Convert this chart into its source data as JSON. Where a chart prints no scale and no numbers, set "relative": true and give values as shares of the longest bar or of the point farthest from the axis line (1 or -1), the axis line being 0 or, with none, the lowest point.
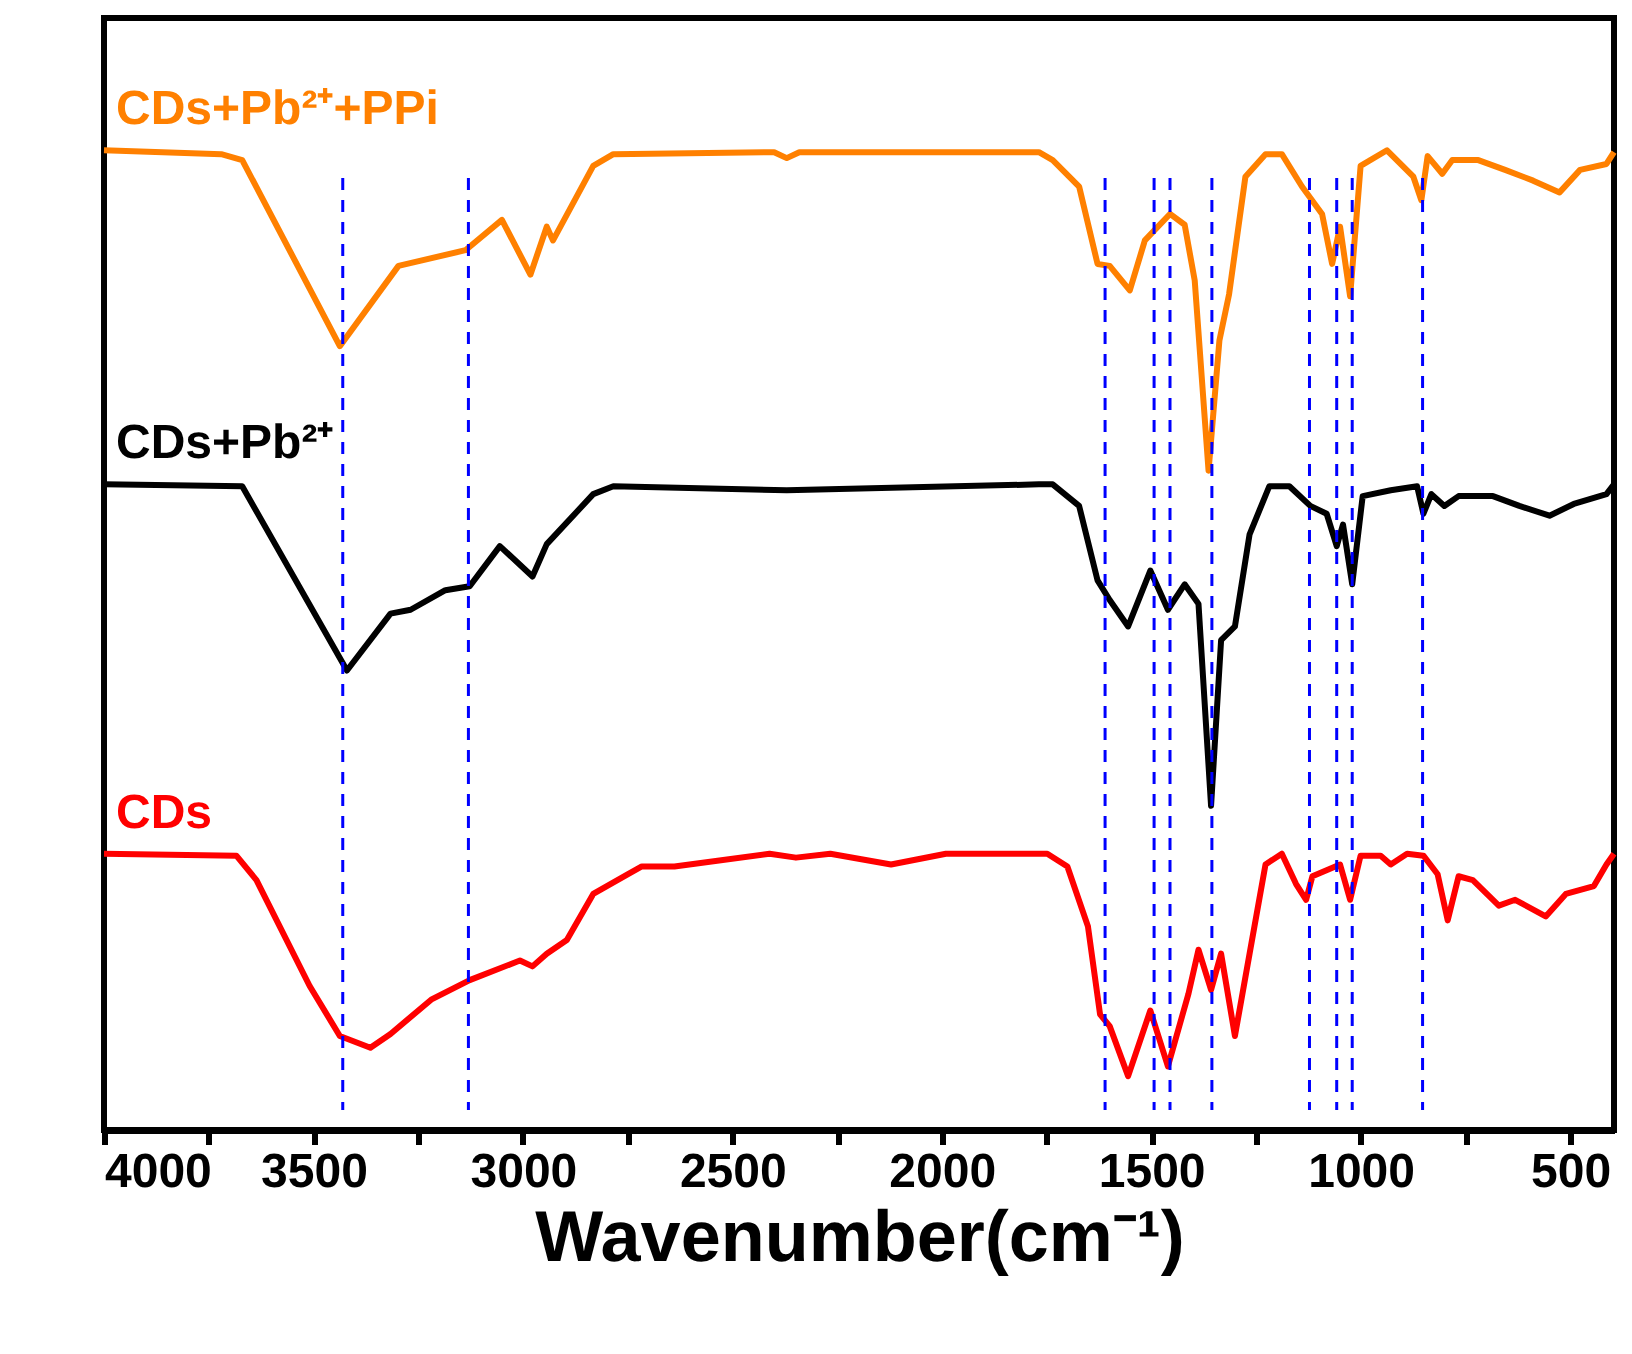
{
  "chart_data": {
    "type": "line",
    "xlabel": "Wavenumber(cm⁻¹)",
    "relative": true,
    "grid": false,
    "legend": false,
    "tick_labels": "x",
    "xlim": [
      4000,
      395
    ],
    "xticks": [
      4000,
      {
        "value": 3750,
        "label": null
      },
      3500,
      {
        "value": 3250,
        "label": null
      },
      3000,
      {
        "value": 2750,
        "label": null
      },
      2500,
      {
        "value": 2250,
        "label": null
      },
      2000,
      {
        "value": 1750,
        "label": null
      },
      1500,
      {
        "value": 1250,
        "label": null
      },
      1000,
      {
        "value": 750,
        "label": null
      },
      500
    ],
    "series": [
      {
        "name": "CDs+Pb²⁺+PPi",
        "color": "#ff8000",
        "x": [
          4000,
          3720,
          3670,
          3437,
          3297,
          3137,
          3050,
          2982,
          2943,
          2928,
          2832,
          2784,
          2400,
          2370,
          2340,
          1768,
          1735,
          1672,
          1628,
          1599,
          1551,
          1515,
          1493,
          1455,
          1420,
          1396,
          1363,
          1337,
          1314,
          1275,
          1227,
          1188,
          1140,
          1092,
          1068,
          1049,
          1025,
          1000,
          937,
          874,
          855,
          840,
          805,
          781,
          719,
          655,
          588,
          525,
          476,
          413,
          395
        ],
        "values": [
          1.0,
          0.996,
          0.99,
          0.8,
          0.882,
          0.898,
          0.929,
          0.873,
          0.922,
          0.908,
          0.984,
          0.996,
          0.998,
          0.992,
          0.998,
          0.998,
          0.99,
          0.963,
          0.884,
          0.882,
          0.857,
          0.908,
          0.918,
          0.935,
          0.924,
          0.867,
          0.673,
          0.806,
          0.853,
          0.973,
          0.996,
          0.996,
          0.963,
          0.935,
          0.884,
          0.922,
          0.851,
          0.984,
          1.0,
          0.973,
          0.949,
          0.994,
          0.976,
          0.99,
          0.99,
          0.98,
          0.969,
          0.957,
          0.98,
          0.986,
          0.998
        ]
      },
      {
        "name": "CDs+Pb²⁺",
        "color": "#000000",
        "x": [
          4000,
          3670,
          3420,
          3316,
          3268,
          3185,
          3127,
          3055,
          2977,
          2943,
          2832,
          2784,
          2370,
          1768,
          1735,
          1672,
          1628,
          1599,
          1555,
          1502,
          1460,
          1420,
          1387,
          1357,
          1333,
          1300,
          1265,
          1218,
          1170,
          1120,
          1081,
          1057,
          1042,
          1020,
          995,
          928,
          865,
          850,
          831,
          800,
          766,
          684,
          621,
          549,
          491,
          413,
          395
        ],
        "values": [
          0.659,
          0.657,
          0.469,
          0.527,
          0.531,
          0.551,
          0.555,
          0.596,
          0.565,
          0.598,
          0.649,
          0.657,
          0.653,
          0.659,
          0.659,
          0.637,
          0.561,
          0.541,
          0.514,
          0.571,
          0.531,
          0.557,
          0.537,
          0.331,
          0.5,
          0.514,
          0.608,
          0.657,
          0.657,
          0.637,
          0.629,
          0.596,
          0.618,
          0.557,
          0.647,
          0.653,
          0.657,
          0.629,
          0.649,
          0.637,
          0.647,
          0.647,
          0.637,
          0.627,
          0.639,
          0.649,
          0.659
        ]
      },
      {
        "name": "CDs",
        "color": "#ff0000",
        "x": [
          4000,
          3684,
          3636,
          3509,
          3437,
          3364,
          3316,
          3219,
          3127,
          3007,
          2977,
          2943,
          2895,
          2832,
          2750,
          2716,
          2638,
          2411,
          2348,
          2266,
          2121,
          1990,
          1748,
          1700,
          1651,
          1622,
          1599,
          1555,
          1502,
          1460,
          1411,
          1387,
          1357,
          1333,
          1300,
          1265,
          1227,
          1188,
          1154,
          1130,
          1115,
          1049,
          1025,
          1000,
          952,
          928,
          889,
          850,
          816,
          792,
          766,
          732,
          670,
          631,
          558,
          510,
          443,
          413,
          395
        ],
        "values": [
          0.282,
          0.28,
          0.255,
          0.147,
          0.096,
          0.084,
          0.098,
          0.133,
          0.153,
          0.173,
          0.167,
          0.18,
          0.194,
          0.241,
          0.261,
          0.269,
          0.269,
          0.282,
          0.278,
          0.282,
          0.271,
          0.282,
          0.282,
          0.269,
          0.208,
          0.118,
          0.106,
          0.055,
          0.122,
          0.065,
          0.139,
          0.184,
          0.143,
          0.18,
          0.096,
          0.18,
          0.271,
          0.282,
          0.251,
          0.235,
          0.259,
          0.271,
          0.235,
          0.28,
          0.28,
          0.271,
          0.282,
          0.28,
          0.261,
          0.214,
          0.259,
          0.255,
          0.229,
          0.235,
          0.218,
          0.241,
          0.249,
          0.271,
          0.282
        ]
      }
    ],
    "ref_lines": [
      {
        "axis": "x",
        "value": 3430,
        "color": "#0000ff",
        "line_style": "dashed"
      },
      {
        "axis": "x",
        "value": 3130,
        "color": "#0000ff",
        "line_style": "dashed"
      },
      {
        "axis": "x",
        "value": 1610,
        "color": "#0000ff",
        "line_style": "dashed"
      },
      {
        "axis": "x",
        "value": 1493,
        "color": "#0000ff",
        "line_style": "dashed"
      },
      {
        "axis": "x",
        "value": 1455,
        "color": "#0000ff",
        "line_style": "dashed"
      },
      {
        "axis": "x",
        "value": 1355,
        "color": "#0000ff",
        "line_style": "dashed"
      },
      {
        "axis": "x",
        "value": 1122,
        "color": "#0000ff",
        "line_style": "dashed"
      },
      {
        "axis": "x",
        "value": 1057,
        "color": "#0000ff",
        "line_style": "dashed"
      },
      {
        "axis": "x",
        "value": 1020,
        "color": "#0000ff",
        "line_style": "dashed"
      },
      {
        "axis": "x",
        "value": 852,
        "color": "#0000ff",
        "line_style": "dashed"
      }
    ]
  }
}
